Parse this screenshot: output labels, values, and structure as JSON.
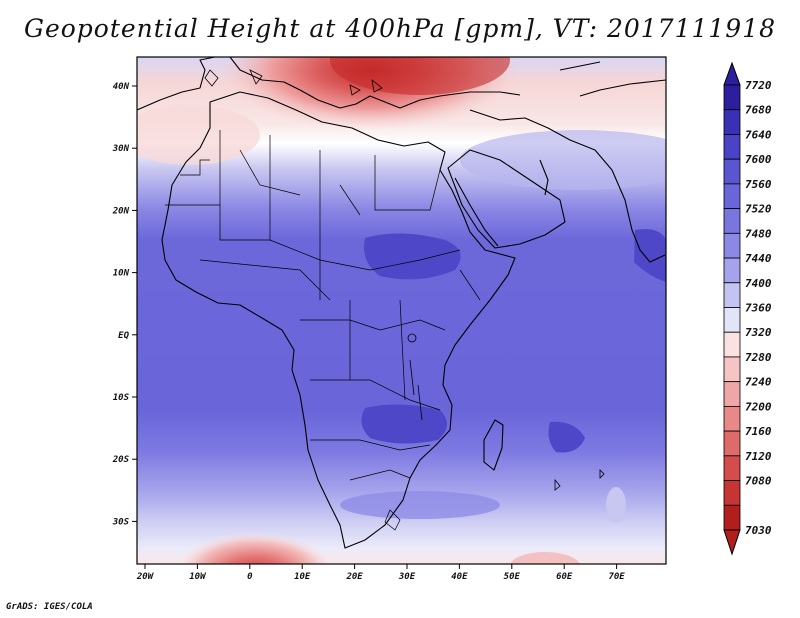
{
  "title": "Geopotential Height at 400hPa [gpm], VT: 2017111918",
  "credit": "GrADS: IGES/COLA",
  "map": {
    "lon_ticks": [
      "20W",
      "10W",
      "0",
      "10E",
      "20E",
      "30E",
      "40E",
      "50E",
      "60E",
      "70E"
    ],
    "lat_ticks": [
      "40N",
      "30N",
      "20N",
      "10N",
      "EQ",
      "10S",
      "20S",
      "30S"
    ],
    "colorbar": {
      "labels": [
        "7720",
        "7680",
        "7640",
        "7600",
        "7560",
        "7520",
        "7480",
        "7440",
        "7400",
        "7360",
        "7320",
        "7280",
        "7240",
        "7200",
        "7160",
        "7120",
        "7080",
        "7030"
      ],
      "colors": [
        "#2c1e9c",
        "#3a30b4",
        "#4a43c6",
        "#5a56d2",
        "#6a66da",
        "#7a76e0",
        "#8c89e6",
        "#a4a3ec",
        "#c4c4f2",
        "#e4e4f8",
        "#fbe2e2",
        "#f6c4c4",
        "#efa6a6",
        "#e88888",
        "#de6a6a",
        "#d44c4c",
        "#c83434",
        "#b01e1e"
      ]
    }
  }
}
